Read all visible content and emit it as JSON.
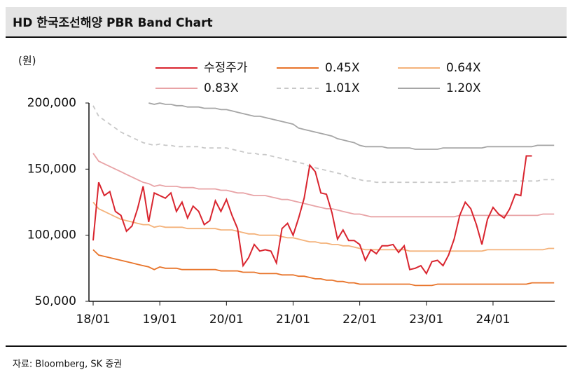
{
  "chart_data": {
    "type": "line",
    "title": "HD 한국조선해양 PBR Band Chart",
    "y_unit": "(원)",
    "source": "자료: Bloomberg, SK 증권",
    "categories": [
      "18/01",
      null,
      null,
      null,
      null,
      null,
      null,
      null,
      null,
      null,
      null,
      null,
      "19/01",
      null,
      null,
      null,
      null,
      null,
      null,
      null,
      null,
      null,
      null,
      null,
      "20/01",
      null,
      null,
      null,
      null,
      null,
      null,
      null,
      null,
      null,
      null,
      null,
      "21/01",
      null,
      null,
      null,
      null,
      null,
      null,
      null,
      null,
      null,
      null,
      null,
      "22/01",
      null,
      null,
      null,
      null,
      null,
      null,
      null,
      null,
      null,
      null,
      null,
      "23/01",
      null,
      null,
      null,
      null,
      null,
      null,
      null,
      null,
      null,
      null,
      null,
      "24/01",
      null,
      null,
      null,
      null,
      null,
      null,
      null,
      null,
      null,
      null,
      null
    ],
    "ylim": [
      50000,
      200000
    ],
    "yticks": [
      {
        "value": 50000,
        "label": "50,000"
      },
      {
        "value": 100000,
        "label": "100,000"
      },
      {
        "value": 150000,
        "label": "150,000"
      },
      {
        "value": 200000,
        "label": "200,000"
      }
    ],
    "grid": false,
    "series": [
      {
        "name": "수정주가",
        "color": "#d9252f",
        "dashed": false,
        "values": [
          96000,
          140000,
          130000,
          133000,
          118000,
          115000,
          103000,
          107000,
          120000,
          137000,
          110000,
          132000,
          130000,
          128000,
          132000,
          118000,
          125000,
          113000,
          122000,
          118000,
          108000,
          111000,
          126000,
          118000,
          127000,
          115000,
          105000,
          77000,
          83000,
          93000,
          88000,
          89000,
          88000,
          79000,
          105000,
          109000,
          100000,
          113000,
          128000,
          153000,
          148000,
          132000,
          131000,
          117000,
          97000,
          104000,
          96000,
          96000,
          93000,
          81000,
          89000,
          86000,
          92000,
          92000,
          93000,
          87000,
          92000,
          74000,
          75000,
          77000,
          71000,
          80000,
          81000,
          77000,
          85000,
          97000,
          115000,
          125000,
          120000,
          108000,
          93000,
          112000,
          121000,
          116000,
          113000,
          120000,
          131000,
          130000,
          160000,
          160000,
          null,
          null,
          null,
          null
        ]
      },
      {
        "name": "0.45X",
        "color": "#e8742a",
        "dashed": false,
        "values": [
          89000,
          85000,
          84000,
          83000,
          82000,
          81000,
          80000,
          79000,
          78000,
          77000,
          76000,
          74000,
          76000,
          75000,
          75000,
          75000,
          74000,
          74000,
          74000,
          74000,
          74000,
          74000,
          74000,
          73000,
          73000,
          73000,
          73000,
          72000,
          72000,
          72000,
          71000,
          71000,
          71000,
          71000,
          70000,
          70000,
          70000,
          69000,
          69000,
          68000,
          67000,
          67000,
          66000,
          66000,
          65000,
          65000,
          64000,
          64000,
          63000,
          63000,
          63000,
          63000,
          63000,
          63000,
          63000,
          63000,
          63000,
          63000,
          62000,
          62000,
          62000,
          62000,
          63000,
          63000,
          63000,
          63000,
          63000,
          63000,
          63000,
          63000,
          63000,
          63000,
          63000,
          63000,
          63000,
          63000,
          63000,
          63000,
          63000,
          64000,
          64000,
          64000,
          64000,
          64000
        ]
      },
      {
        "name": "0.64X",
        "color": "#f4b27a",
        "dashed": false,
        "values": [
          125000,
          120000,
          118000,
          116000,
          114000,
          112000,
          111000,
          110000,
          109000,
          108000,
          108000,
          106000,
          107000,
          106000,
          106000,
          106000,
          106000,
          105000,
          105000,
          105000,
          105000,
          105000,
          105000,
          104000,
          104000,
          104000,
          103000,
          102000,
          101000,
          101000,
          100000,
          100000,
          100000,
          100000,
          99000,
          98000,
          98000,
          97000,
          96000,
          95000,
          95000,
          94000,
          94000,
          93000,
          93000,
          92000,
          92000,
          91000,
          90000,
          89000,
          89000,
          89000,
          89000,
          89000,
          89000,
          89000,
          89000,
          88000,
          88000,
          88000,
          88000,
          88000,
          88000,
          88000,
          88000,
          88000,
          88000,
          88000,
          88000,
          88000,
          88000,
          89000,
          89000,
          89000,
          89000,
          89000,
          89000,
          89000,
          89000,
          89000,
          89000,
          89000,
          90000,
          90000
        ]
      },
      {
        "name": "0.83X",
        "color": "#e8a3a6",
        "dashed": false,
        "values": [
          162000,
          156000,
          154000,
          152000,
          150000,
          148000,
          146000,
          144000,
          142000,
          140000,
          139000,
          137000,
          138000,
          137000,
          137000,
          137000,
          136000,
          136000,
          136000,
          135000,
          135000,
          135000,
          135000,
          134000,
          134000,
          133000,
          132000,
          132000,
          131000,
          130000,
          130000,
          130000,
          129000,
          128000,
          127000,
          127000,
          126000,
          125000,
          124000,
          123000,
          122000,
          121000,
          120000,
          120000,
          119000,
          118000,
          117000,
          116000,
          116000,
          115000,
          114000,
          114000,
          114000,
          114000,
          114000,
          114000,
          114000,
          114000,
          114000,
          114000,
          114000,
          114000,
          114000,
          114000,
          114000,
          114000,
          115000,
          115000,
          115000,
          115000,
          115000,
          115000,
          115000,
          115000,
          115000,
          115000,
          115000,
          115000,
          115000,
          115000,
          115000,
          116000,
          116000,
          116000
        ]
      },
      {
        "name": "1.01X",
        "color": "#c8c8c8",
        "dashed": true,
        "values": [
          198000,
          190000,
          187000,
          184000,
          181000,
          178000,
          176000,
          174000,
          172000,
          170000,
          169000,
          168000,
          169000,
          168000,
          168000,
          167000,
          167000,
          167000,
          167000,
          167000,
          166000,
          166000,
          166000,
          166000,
          166000,
          165000,
          164000,
          163000,
          162000,
          162000,
          161000,
          161000,
          160000,
          159000,
          158000,
          157000,
          156000,
          155000,
          154000,
          152000,
          151000,
          150000,
          149000,
          148000,
          147000,
          146000,
          144000,
          143000,
          142000,
          141000,
          141000,
          140000,
          140000,
          140000,
          140000,
          140000,
          140000,
          140000,
          140000,
          140000,
          140000,
          140000,
          140000,
          140000,
          140000,
          140000,
          141000,
          141000,
          141000,
          141000,
          141000,
          141000,
          141000,
          141000,
          141000,
          141000,
          141000,
          141000,
          141000,
          141000,
          141000,
          142000,
          142000,
          142000
        ]
      },
      {
        "name": "1.20X",
        "color": "#a6a6a6",
        "dashed": false,
        "values": [
          null,
          null,
          null,
          null,
          null,
          null,
          null,
          null,
          null,
          null,
          200000,
          199000,
          200000,
          199000,
          199000,
          198000,
          198000,
          197000,
          197000,
          197000,
          196000,
          196000,
          196000,
          195000,
          195000,
          194000,
          193000,
          192000,
          191000,
          190000,
          190000,
          189000,
          188000,
          187000,
          186000,
          185000,
          184000,
          181000,
          180000,
          179000,
          178000,
          177000,
          176000,
          175000,
          173000,
          172000,
          171000,
          170000,
          168000,
          167000,
          167000,
          167000,
          167000,
          166000,
          166000,
          166000,
          166000,
          166000,
          165000,
          165000,
          165000,
          165000,
          165000,
          166000,
          166000,
          166000,
          166000,
          166000,
          166000,
          166000,
          166000,
          167000,
          167000,
          167000,
          167000,
          167000,
          167000,
          167000,
          167000,
          167000,
          168000,
          168000,
          168000,
          168000
        ]
      }
    ]
  }
}
